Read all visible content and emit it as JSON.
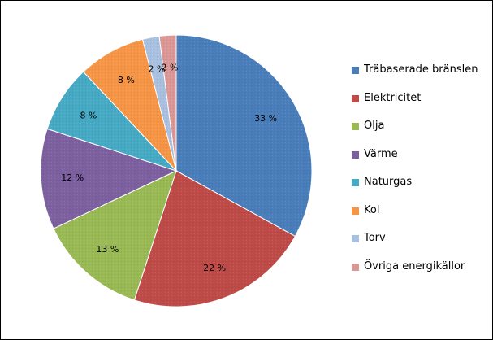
{
  "chart_data": {
    "type": "pie",
    "categories": [
      "Träbaserade bränslen",
      "Elektricitet",
      "Olja",
      "Värme",
      "Naturgas",
      "Kol",
      "Torv",
      "Övriga energikällor"
    ],
    "values": [
      33,
      22,
      13,
      12,
      8,
      8,
      2,
      2
    ],
    "data_labels": [
      "33 %",
      "22 %",
      "13 %",
      "12 %",
      "8 %",
      "8 %",
      "2 %",
      "2 %"
    ],
    "colors": [
      "#4a7ebb",
      "#be4b48",
      "#98b954",
      "#7d60a0",
      "#46aac5",
      "#f69546",
      "#a9c0e0",
      "#d99796"
    ],
    "legend": "right",
    "title": ""
  }
}
